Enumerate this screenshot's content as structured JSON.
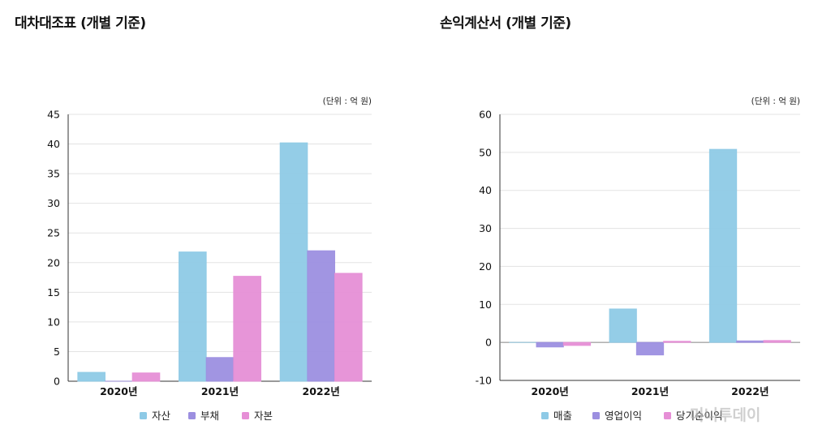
{
  "watermark": "머니투데이",
  "chart_data": [
    {
      "type": "bar",
      "title": "대차대조표 (개별 기준)",
      "unit": "(단위 : 억 원)",
      "categories": [
        "2020년",
        "2021년",
        "2022년"
      ],
      "series": [
        {
          "name": "자산",
          "color": "#8ecae6",
          "values": [
            1.5,
            21.8,
            40.2
          ]
        },
        {
          "name": "부채",
          "color": "#9c8fe0",
          "values": [
            0,
            4.0,
            22.0
          ]
        },
        {
          "name": "자본",
          "color": "#e68fd6",
          "values": [
            1.4,
            17.7,
            18.2
          ]
        }
      ],
      "ylim": [
        0,
        45
      ],
      "yticks": [
        0,
        5,
        10,
        15,
        20,
        25,
        30,
        35,
        40,
        45
      ],
      "grid": true,
      "legend": "bottom"
    },
    {
      "type": "bar",
      "title": "손익계산서 (개별 기준)",
      "unit": "(단위 : 억 원)",
      "categories": [
        "2020년",
        "2021년",
        "2022년"
      ],
      "series": [
        {
          "name": "매출",
          "color": "#8ecae6",
          "values": [
            0,
            8.8,
            50.8
          ]
        },
        {
          "name": "영업이익",
          "color": "#9c8fe0",
          "values": [
            -1.2,
            -3.3,
            0.4
          ]
        },
        {
          "name": "당기순이익",
          "color": "#e68fd6",
          "values": [
            -0.8,
            0.3,
            0.5
          ]
        }
      ],
      "ylim": [
        -10,
        60
      ],
      "yticks": [
        -10,
        0,
        10,
        20,
        30,
        40,
        50,
        60
      ],
      "grid": true,
      "legend": "bottom"
    }
  ]
}
